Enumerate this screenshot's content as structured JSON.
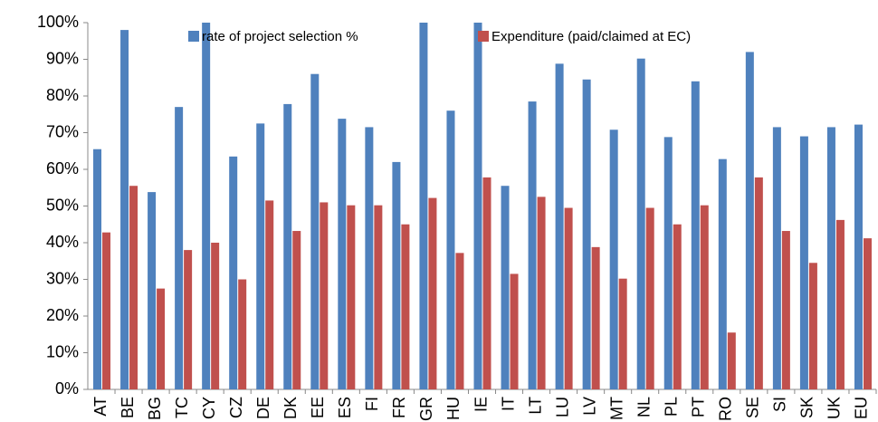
{
  "chart_data": {
    "type": "bar",
    "categories": [
      "AT",
      "BE",
      "BG",
      "TC",
      "CY",
      "CZ",
      "DE",
      "DK",
      "EE",
      "ES",
      "FI",
      "FR",
      "GR",
      "HU",
      "IE",
      "IT",
      "LT",
      "LU",
      "LV",
      "MT",
      "NL",
      "PL",
      "PT",
      "RO",
      "SE",
      "SI",
      "SK",
      "UK",
      "EU"
    ],
    "series": [
      {
        "name": "rate of project selection %",
        "color": "#4f81bd",
        "values": [
          65.5,
          98,
          53.8,
          77,
          100,
          63.5,
          72.5,
          77.8,
          86,
          73.8,
          71.5,
          62,
          100,
          76,
          100,
          55.5,
          78.5,
          88.8,
          84.5,
          70.8,
          90.2,
          68.8,
          84,
          62.8,
          92,
          71.5,
          69,
          71.5,
          72.2
        ]
      },
      {
        "name": "Expenditure (paid/claimed at EC)",
        "color": "#c0504d",
        "values": [
          42.8,
          55.5,
          27.5,
          38,
          40,
          30,
          51.5,
          43.2,
          51,
          50.2,
          50.2,
          45,
          52.2,
          37.2,
          57.8,
          31.5,
          52.5,
          49.5,
          38.8,
          30.2,
          49.5,
          45,
          50.2,
          15.5,
          57.8,
          43.2,
          34.5,
          46.2,
          41.2
        ]
      }
    ],
    "ylim": [
      0,
      100
    ],
    "yticks": [
      {
        "value": 0,
        "label": "0%"
      },
      {
        "value": 10,
        "label": "10%"
      },
      {
        "value": 20,
        "label": "20%"
      },
      {
        "value": 30,
        "label": "30%"
      },
      {
        "value": 40,
        "label": "40%"
      },
      {
        "value": 50,
        "label": "50%"
      },
      {
        "value": 60,
        "label": "60%"
      },
      {
        "value": 70,
        "label": "70%"
      },
      {
        "value": 80,
        "label": "80%"
      },
      {
        "value": 90,
        "label": "90%"
      },
      {
        "value": 100,
        "label": "100%"
      }
    ],
    "grid": false
  }
}
